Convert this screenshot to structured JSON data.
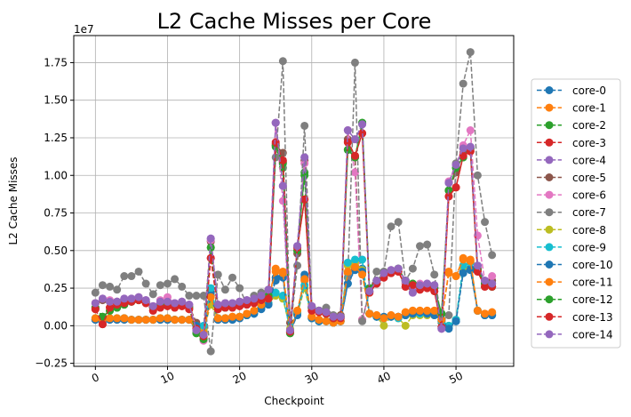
{
  "chart_data": {
    "type": "line",
    "title": "L2 Cache Misses per Core",
    "xlabel": "Checkpoint",
    "ylabel": "L2 Cache Misses",
    "offset_label": "1e7",
    "xlim": [
      -3,
      58
    ],
    "ylim": [
      -0.27,
      1.93
    ],
    "scale": 10000000.0,
    "x_ticks": [
      0,
      10,
      20,
      30,
      40,
      50
    ],
    "y_ticks": [
      -0.25,
      0.0,
      0.25,
      0.5,
      0.75,
      1.0,
      1.25,
      1.5,
      1.75
    ],
    "y_tick_labels": [
      "−0.25",
      "0.00",
      "0.25",
      "0.50",
      "0.75",
      "1.00",
      "1.25",
      "1.50",
      "1.75"
    ],
    "grid": true,
    "legend_position": "right",
    "x": [
      0,
      1,
      2,
      3,
      4,
      5,
      6,
      7,
      8,
      9,
      10,
      11,
      12,
      13,
      14,
      15,
      16,
      17,
      18,
      19,
      20,
      21,
      22,
      23,
      24,
      25,
      26,
      27,
      28,
      29,
      30,
      31,
      32,
      33,
      34,
      35,
      36,
      37,
      38,
      39,
      40,
      41,
      42,
      43,
      44,
      45,
      46,
      47,
      48,
      49,
      50,
      51,
      52,
      53,
      54,
      55
    ],
    "series": [
      {
        "name": "core-0",
        "color": "#1f77b4",
        "values": [
          0.04,
          0.03,
          0.04,
          0.04,
          0.05,
          0.04,
          0.04,
          0.04,
          0.04,
          0.04,
          0.04,
          0.04,
          0.04,
          0.04,
          -0.03,
          -0.06,
          0.22,
          0.04,
          0.04,
          0.04,
          0.05,
          0.07,
          0.08,
          0.12,
          0.15,
          0.32,
          0.33,
          -0.04,
          0.08,
          0.32,
          0.05,
          0.03,
          0.03,
          0.02,
          0.03,
          0.28,
          0.38,
          0.38,
          0.08,
          0.06,
          0.06,
          0.06,
          0.06,
          0.07,
          0.08,
          0.08,
          0.08,
          0.08,
          0.04,
          -0.01,
          0.03,
          0.36,
          0.38,
          0.1,
          0.07,
          0.07
        ]
      },
      {
        "name": "core-1",
        "color": "#ff7f0e",
        "values": [
          0.05,
          0.04,
          0.05,
          0.05,
          0.05,
          0.04,
          0.04,
          0.04,
          0.04,
          0.05,
          0.05,
          0.04,
          0.04,
          0.04,
          -0.02,
          -0.05,
          0.2,
          0.05,
          0.05,
          0.06,
          0.06,
          0.08,
          0.1,
          0.14,
          0.18,
          0.38,
          0.36,
          -0.03,
          0.1,
          0.3,
          0.06,
          0.04,
          0.03,
          0.02,
          0.03,
          0.35,
          0.4,
          0.35,
          0.08,
          0.07,
          0.05,
          0.07,
          0.06,
          0.09,
          0.1,
          0.1,
          0.1,
          0.1,
          0.04,
          0.36,
          0.33,
          0.45,
          0.44,
          0.1,
          0.08,
          0.09
        ]
      },
      {
        "name": "core-2",
        "color": "#2ca02c",
        "values": [
          0.12,
          0.06,
          0.1,
          0.12,
          0.14,
          0.16,
          0.17,
          0.16,
          0.12,
          0.13,
          0.14,
          0.13,
          0.14,
          0.12,
          -0.05,
          -0.09,
          0.52,
          0.12,
          0.12,
          0.13,
          0.14,
          0.15,
          0.16,
          0.18,
          0.2,
          1.19,
          1.05,
          -0.05,
          0.5,
          1.02,
          0.12,
          0.1,
          0.08,
          0.05,
          0.06,
          1.17,
          1.12,
          1.35,
          0.25,
          0.3,
          0.35,
          0.36,
          0.38,
          0.3,
          0.28,
          0.26,
          0.27,
          0.25,
          0.08,
          0.9,
          1.05,
          1.12,
          1.18,
          0.37,
          0.28,
          0.26
        ]
      },
      {
        "name": "core-3",
        "color": "#d62728",
        "values": [
          0.11,
          0.01,
          0.12,
          0.14,
          0.15,
          0.16,
          0.17,
          0.15,
          0.1,
          0.12,
          0.13,
          0.12,
          0.13,
          0.11,
          -0.02,
          -0.07,
          0.45,
          0.11,
          0.12,
          0.12,
          0.13,
          0.14,
          0.15,
          0.17,
          0.18,
          1.21,
          1.09,
          -0.04,
          0.52,
          0.84,
          0.1,
          0.09,
          0.08,
          0.05,
          0.05,
          1.22,
          1.13,
          1.28,
          0.22,
          0.28,
          0.32,
          0.35,
          0.36,
          0.26,
          0.27,
          0.24,
          0.25,
          0.23,
          -0.01,
          0.86,
          0.92,
          1.13,
          1.16,
          0.36,
          0.26,
          0.26
        ]
      },
      {
        "name": "core-4",
        "color": "#9467bd",
        "values": [
          0.15,
          0.18,
          0.16,
          0.16,
          0.18,
          0.18,
          0.19,
          0.17,
          0.13,
          0.16,
          0.16,
          0.15,
          0.16,
          0.14,
          -0.03,
          -0.06,
          0.58,
          0.14,
          0.15,
          0.15,
          0.16,
          0.17,
          0.18,
          0.2,
          0.24,
          1.35,
          0.93,
          -0.03,
          0.53,
          1.12,
          0.13,
          0.1,
          0.09,
          0.06,
          0.06,
          1.3,
          1.24,
          1.34,
          0.23,
          0.3,
          0.35,
          0.37,
          0.38,
          0.3,
          0.22,
          0.27,
          0.28,
          0.27,
          -0.02,
          0.95,
          1.07,
          1.18,
          1.19,
          0.4,
          0.3,
          0.28
        ]
      },
      {
        "name": "core-5",
        "color": "#8c564b",
        "values": [
          0.15,
          0.17,
          0.16,
          0.16,
          0.17,
          0.17,
          0.18,
          0.16,
          0.12,
          0.15,
          0.15,
          0.14,
          0.15,
          0.13,
          0.02,
          -0.02,
          0.56,
          0.13,
          0.14,
          0.14,
          0.15,
          0.16,
          0.17,
          0.19,
          0.22,
          1.2,
          1.15,
          0.02,
          0.48,
          1.1,
          0.12,
          0.1,
          0.09,
          0.06,
          0.07,
          1.24,
          1.12,
          0.04,
          0.23,
          0.28,
          0.33,
          0.35,
          0.36,
          0.28,
          0.25,
          0.26,
          0.27,
          0.25,
          0.02,
          0.9,
          1.02,
          1.15,
          1.18,
          0.38,
          0.28,
          0.3
        ]
      },
      {
        "name": "core-6",
        "color": "#e377c2",
        "values": [
          0.15,
          0.18,
          0.17,
          0.16,
          0.18,
          0.18,
          0.19,
          0.17,
          0.13,
          0.17,
          0.19,
          0.15,
          0.16,
          0.14,
          -0.02,
          -0.1,
          0.57,
          0.14,
          0.15,
          0.15,
          0.16,
          0.17,
          0.18,
          0.2,
          0.23,
          1.35,
          0.83,
          -0.03,
          0.52,
          1.08,
          0.13,
          0.1,
          0.09,
          0.06,
          0.06,
          1.3,
          1.02,
          0.04,
          0.23,
          0.3,
          0.35,
          0.37,
          0.38,
          0.29,
          0.26,
          0.28,
          0.28,
          0.26,
          -0.02,
          0.96,
          1.07,
          1.2,
          1.3,
          0.6,
          0.3,
          0.33
        ]
      },
      {
        "name": "core-7",
        "color": "#7f7f7f",
        "values": [
          0.22,
          0.27,
          0.26,
          0.24,
          0.33,
          0.33,
          0.36,
          0.28,
          0.21,
          0.27,
          0.28,
          0.31,
          0.26,
          0.2,
          0.2,
          0.2,
          -0.17,
          0.34,
          0.24,
          0.32,
          0.25,
          0.14,
          0.2,
          0.22,
          0.24,
          1.12,
          1.76,
          -0.04,
          0.4,
          1.33,
          0.12,
          0.1,
          0.12,
          0.07,
          0.06,
          0.32,
          1.75,
          0.03,
          0.23,
          0.36,
          0.36,
          0.66,
          0.69,
          0.3,
          0.38,
          0.53,
          0.54,
          0.34,
          0.03,
          0.07,
          1.08,
          1.61,
          1.82,
          1.0,
          0.69,
          0.47
        ]
      },
      {
        "name": "core-8",
        "color": "#bcbd22",
        "values": [
          0.05,
          0.04,
          0.05,
          0.05,
          0.05,
          0.04,
          0.04,
          0.04,
          0.04,
          0.05,
          0.05,
          0.04,
          0.04,
          0.04,
          0.0,
          -0.03,
          0.14,
          0.05,
          0.05,
          0.05,
          0.06,
          0.07,
          0.09,
          0.12,
          0.15,
          0.2,
          0.18,
          -0.02,
          0.08,
          0.25,
          0.05,
          0.03,
          0.03,
          0.02,
          0.03,
          0.4,
          0.42,
          0.37,
          0.08,
          0.06,
          0.0,
          0.06,
          0.05,
          0.0,
          0.07,
          0.07,
          0.07,
          0.07,
          0.03,
          0.0,
          0.04,
          0.39,
          0.42,
          0.1,
          0.07,
          0.08
        ]
      },
      {
        "name": "core-9",
        "color": "#17becf",
        "values": [
          0.05,
          0.04,
          0.05,
          0.05,
          0.05,
          0.04,
          0.04,
          0.04,
          0.04,
          0.05,
          0.05,
          0.04,
          0.04,
          0.04,
          0.0,
          0.0,
          0.25,
          0.05,
          0.05,
          0.05,
          0.06,
          0.07,
          0.09,
          0.12,
          0.15,
          0.22,
          0.2,
          -0.03,
          0.09,
          0.27,
          0.05,
          0.03,
          0.03,
          0.02,
          0.03,
          0.42,
          0.44,
          0.44,
          0.08,
          0.06,
          0.05,
          0.06,
          0.05,
          0.07,
          0.08,
          0.08,
          0.08,
          0.08,
          0.03,
          0.0,
          0.04,
          0.4,
          0.42,
          0.1,
          0.07,
          0.08
        ]
      },
      {
        "name": "core-10",
        "color": "#1f77b4",
        "values": [
          0.04,
          0.03,
          0.04,
          0.04,
          0.04,
          0.04,
          0.04,
          0.04,
          0.04,
          0.04,
          0.04,
          0.04,
          0.04,
          0.04,
          0.0,
          -0.06,
          0.2,
          0.04,
          0.04,
          0.04,
          0.05,
          0.07,
          0.08,
          0.11,
          0.14,
          0.3,
          0.32,
          -0.04,
          0.07,
          0.34,
          0.05,
          0.03,
          0.03,
          0.02,
          0.03,
          0.28,
          0.37,
          0.36,
          0.08,
          0.06,
          0.05,
          0.06,
          0.06,
          0.07,
          0.08,
          0.09,
          0.08,
          0.07,
          0.04,
          -0.02,
          0.03,
          0.35,
          0.37,
          0.1,
          0.07,
          0.07
        ]
      },
      {
        "name": "core-11",
        "color": "#ff7f0e",
        "values": [
          0.05,
          0.04,
          0.05,
          0.05,
          0.05,
          0.04,
          0.04,
          0.04,
          0.04,
          0.05,
          0.05,
          0.04,
          0.04,
          0.04,
          -0.02,
          -0.05,
          0.19,
          0.05,
          0.05,
          0.06,
          0.06,
          0.08,
          0.1,
          0.14,
          0.18,
          0.36,
          0.35,
          -0.03,
          0.1,
          0.31,
          0.06,
          0.04,
          0.03,
          0.02,
          0.03,
          0.36,
          0.39,
          0.34,
          0.08,
          0.07,
          0.05,
          0.07,
          0.06,
          0.09,
          0.1,
          0.1,
          0.1,
          0.1,
          0.04,
          0.35,
          0.33,
          0.44,
          0.43,
          0.1,
          0.08,
          0.09
        ]
      },
      {
        "name": "core-12",
        "color": "#2ca02c",
        "values": [
          0.12,
          0.06,
          0.1,
          0.12,
          0.14,
          0.16,
          0.17,
          0.16,
          0.12,
          0.13,
          0.14,
          0.13,
          0.14,
          0.12,
          -0.05,
          -0.09,
          0.52,
          0.12,
          0.12,
          0.13,
          0.14,
          0.15,
          0.16,
          0.18,
          0.2,
          1.2,
          1.08,
          -0.05,
          0.5,
          1.0,
          0.12,
          0.1,
          0.08,
          0.05,
          0.06,
          1.17,
          1.12,
          1.35,
          0.25,
          0.3,
          0.35,
          0.36,
          0.38,
          0.3,
          0.28,
          0.26,
          0.27,
          0.25,
          0.08,
          0.9,
          1.05,
          1.12,
          1.18,
          0.37,
          0.28,
          0.26
        ]
      },
      {
        "name": "core-13",
        "color": "#d62728",
        "values": [
          0.11,
          0.01,
          0.12,
          0.14,
          0.15,
          0.16,
          0.17,
          0.15,
          0.1,
          0.12,
          0.13,
          0.12,
          0.13,
          0.11,
          -0.02,
          -0.07,
          0.45,
          0.11,
          0.12,
          0.12,
          0.13,
          0.14,
          0.15,
          0.17,
          0.18,
          1.22,
          1.1,
          -0.04,
          0.52,
          0.84,
          0.1,
          0.09,
          0.08,
          0.05,
          0.05,
          1.22,
          1.13,
          1.28,
          0.22,
          0.28,
          0.32,
          0.35,
          0.36,
          0.26,
          0.27,
          0.24,
          0.25,
          0.23,
          -0.01,
          0.86,
          0.92,
          1.13,
          1.16,
          0.36,
          0.26,
          0.26
        ]
      },
      {
        "name": "core-14",
        "color": "#9467bd",
        "values": [
          0.15,
          0.18,
          0.16,
          0.16,
          0.18,
          0.18,
          0.19,
          0.17,
          0.13,
          0.16,
          0.16,
          0.15,
          0.16,
          0.14,
          -0.03,
          -0.06,
          0.58,
          0.14,
          0.15,
          0.15,
          0.16,
          0.17,
          0.18,
          0.2,
          0.24,
          1.35,
          0.93,
          -0.03,
          0.53,
          1.12,
          0.13,
          0.1,
          0.09,
          0.06,
          0.06,
          1.3,
          1.24,
          1.34,
          0.23,
          0.3,
          0.35,
          0.37,
          0.38,
          0.3,
          0.22,
          0.27,
          0.28,
          0.27,
          -0.02,
          0.95,
          1.07,
          1.18,
          1.19,
          0.4,
          0.3,
          0.28
        ]
      }
    ]
  }
}
